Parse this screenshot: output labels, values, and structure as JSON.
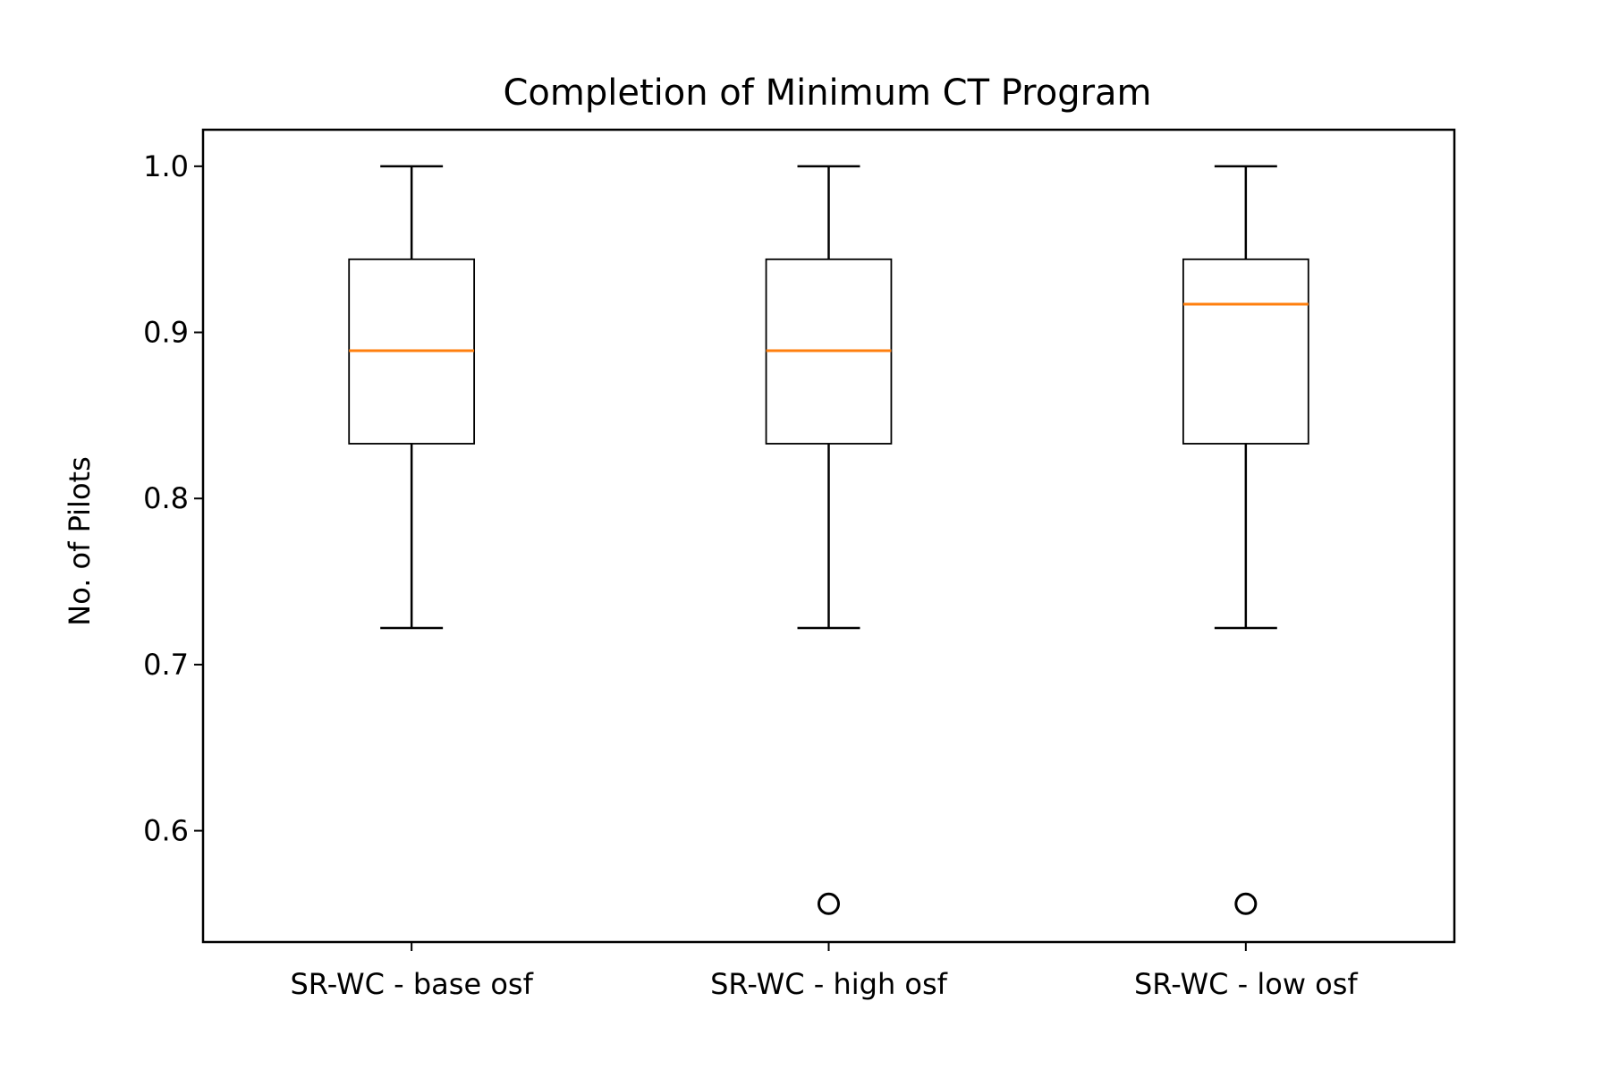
{
  "chart_data": {
    "type": "box",
    "title": "Completion of Minimum CT Program",
    "xlabel": "",
    "ylabel": "No. of Pilots",
    "ylim": [
      0.533,
      1.022
    ],
    "yticks": [
      0.6,
      0.7,
      0.8,
      0.9,
      1.0
    ],
    "ytick_labels": [
      "0.6",
      "0.7",
      "0.8",
      "0.9",
      "1.0"
    ],
    "grid": false,
    "categories": [
      "SR-WC - base osf",
      "SR-WC - high osf",
      "SR-WC - low osf"
    ],
    "boxes": [
      {
        "whisker_low": 0.722,
        "q1": 0.833,
        "median": 0.889,
        "q3": 0.944,
        "whisker_high": 1.0,
        "outliers": []
      },
      {
        "whisker_low": 0.722,
        "q1": 0.833,
        "median": 0.889,
        "q3": 0.944,
        "whisker_high": 1.0,
        "outliers": [
          0.556
        ]
      },
      {
        "whisker_low": 0.722,
        "q1": 0.833,
        "median": 0.917,
        "q3": 0.944,
        "whisker_high": 1.0,
        "outliers": [
          0.556
        ]
      }
    ],
    "colors": {
      "box": "#000000",
      "median": "#ff7f0e",
      "background": "#ffffff"
    }
  }
}
